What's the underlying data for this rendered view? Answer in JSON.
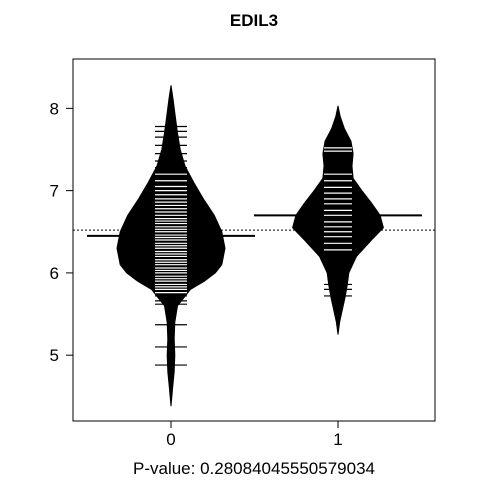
{
  "chart_data": {
    "type": "beanplot",
    "title": "EDIL3",
    "xlabel": "P-value: 0.28084045550579034",
    "ylabel": "",
    "categories": [
      "0",
      "1"
    ],
    "ylim": [
      4.2,
      8.6
    ],
    "yticks": [
      5,
      6,
      7,
      8
    ],
    "overall_mean": 6.52,
    "colors": {
      "bean": "#000000",
      "stripe": "#ffffff",
      "frame": "#000000"
    },
    "groups": [
      {
        "name": "0",
        "mean": 6.45,
        "range": [
          4.38,
          8.28
        ],
        "density": [
          [
            4.38,
            0.0
          ],
          [
            4.6,
            0.03
          ],
          [
            4.8,
            0.06
          ],
          [
            5.0,
            0.07
          ],
          [
            5.2,
            0.06
          ],
          [
            5.4,
            0.07
          ],
          [
            5.6,
            0.12
          ],
          [
            5.8,
            0.36
          ],
          [
            5.9,
            0.62
          ],
          [
            6.0,
            0.82
          ],
          [
            6.1,
            0.94
          ],
          [
            6.3,
            1.0
          ],
          [
            6.5,
            0.94
          ],
          [
            6.7,
            0.8
          ],
          [
            6.9,
            0.6
          ],
          [
            7.1,
            0.42
          ],
          [
            7.3,
            0.26
          ],
          [
            7.5,
            0.17
          ],
          [
            7.7,
            0.12
          ],
          [
            7.9,
            0.08
          ],
          [
            8.1,
            0.04
          ],
          [
            8.28,
            0.0
          ]
        ],
        "observations": [
          4.88,
          5.1,
          5.37,
          5.62,
          5.66,
          5.72,
          5.76,
          5.8,
          5.83,
          5.86,
          5.9,
          5.93,
          5.96,
          6.0,
          6.03,
          6.06,
          6.1,
          6.13,
          6.16,
          6.2,
          6.23,
          6.26,
          6.3,
          6.33,
          6.36,
          6.4,
          6.43,
          6.46,
          6.5,
          6.53,
          6.56,
          6.6,
          6.63,
          6.66,
          6.7,
          6.74,
          6.78,
          6.82,
          6.86,
          6.9,
          6.95,
          7.0,
          7.05,
          7.12,
          7.2,
          7.28,
          7.36,
          7.45,
          7.55,
          7.65,
          7.72,
          7.78
        ]
      },
      {
        "name": "1",
        "mean": 6.7,
        "range": [
          5.25,
          8.03
        ],
        "density": [
          [
            5.25,
            0.0
          ],
          [
            5.4,
            0.03
          ],
          [
            5.55,
            0.08
          ],
          [
            5.7,
            0.13
          ],
          [
            5.85,
            0.17
          ],
          [
            6.0,
            0.2
          ],
          [
            6.2,
            0.34
          ],
          [
            6.4,
            0.62
          ],
          [
            6.55,
            0.84
          ],
          [
            6.7,
            0.78
          ],
          [
            6.85,
            0.62
          ],
          [
            7.0,
            0.44
          ],
          [
            7.15,
            0.28
          ],
          [
            7.3,
            0.26
          ],
          [
            7.45,
            0.28
          ],
          [
            7.6,
            0.24
          ],
          [
            7.75,
            0.12
          ],
          [
            7.9,
            0.04
          ],
          [
            8.03,
            0.0
          ]
        ],
        "observations": [
          5.72,
          5.8,
          5.86,
          6.28,
          6.36,
          6.44,
          6.5,
          6.56,
          6.62,
          6.7,
          6.76,
          6.84,
          6.9,
          6.97,
          7.04,
          7.12,
          7.2,
          7.48,
          7.52
        ]
      }
    ]
  }
}
